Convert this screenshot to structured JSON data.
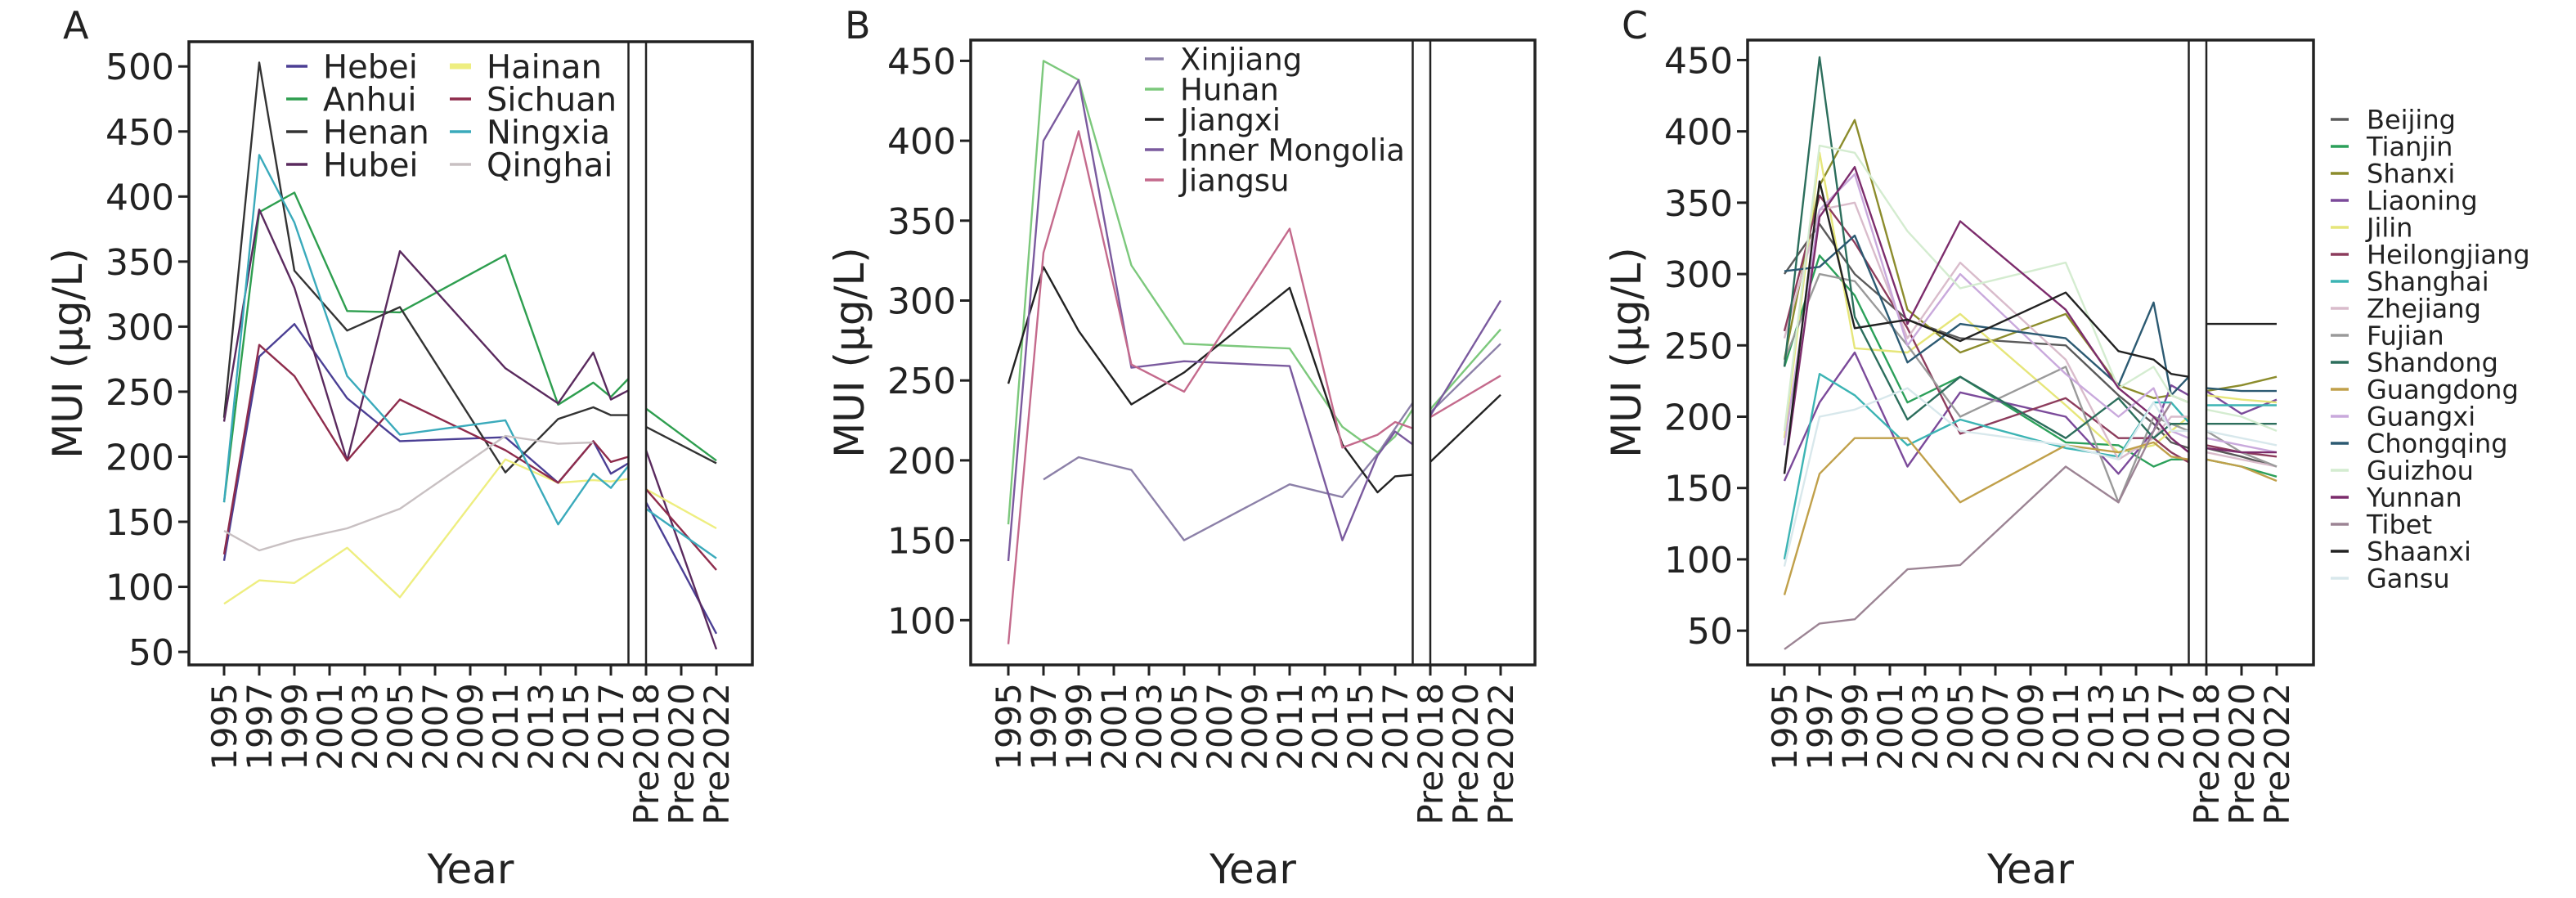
{
  "chart_data": [
    {
      "panel": "A",
      "type": "line",
      "xlabel": "Year",
      "ylabel": "MUI (µg/L)",
      "ylim": [
        40,
        519
      ],
      "y_ticks": [
        "50",
        "100",
        "150",
        "200",
        "250",
        "300",
        "350",
        "400",
        "450",
        "500"
      ],
      "x_tick_labels": [
        "1995",
        "1997",
        "1999",
        "2001",
        "2003",
        "2005",
        "2007",
        "2009",
        "2011",
        "2013",
        "2015",
        "2017",
        "Pre2018",
        "Pre2020",
        "Pre2022"
      ],
      "years": [
        1995,
        1997,
        1999,
        2002,
        2005,
        2011,
        2014,
        2016,
        2017,
        2018
      ],
      "pre_labels": [
        "Pre2018",
        "Pre2020",
        "Pre2022"
      ],
      "legend": "top-center, two columns",
      "series": [
        {
          "name": "Hebei",
          "color": "#4b3f94",
          "values": [
            120,
            277,
            302,
            245,
            212,
            215,
            180,
            212,
            187,
            195
          ],
          "pre": [
            165,
            null,
            64
          ]
        },
        {
          "name": "Anhui",
          "color": "#2e9e4f",
          "values": [
            165,
            388,
            403,
            312,
            311,
            355,
            240,
            257,
            246,
            260
          ],
          "pre": [
            237,
            null,
            197
          ]
        },
        {
          "name": "Henan",
          "color": "#333333",
          "values": [
            230,
            503,
            343,
            297,
            315,
            188,
            229,
            238,
            232,
            232
          ],
          "pre": [
            223,
            null,
            195
          ]
        },
        {
          "name": "Hubei",
          "color": "#5a2a5e",
          "values": [
            227,
            390,
            330,
            197,
            358,
            268,
            241,
            280,
            244,
            251
          ],
          "pre": [
            205,
            null,
            52
          ]
        },
        {
          "name": "Hainan",
          "color": "#eeee80",
          "values": [
            87,
            105,
            103,
            130,
            92,
            198,
            180,
            182,
            181,
            183
          ],
          "pre": [
            175,
            null,
            145
          ]
        },
        {
          "name": "Sichuan",
          "color": "#8e2c4c",
          "values": [
            125,
            286,
            262,
            197,
            244,
            205,
            180,
            212,
            196,
            200
          ],
          "pre": [
            175,
            null,
            113
          ]
        },
        {
          "name": "Ningxia",
          "color": "#3aaabb",
          "values": [
            165,
            432,
            380,
            262,
            217,
            228,
            148,
            187,
            176,
            193
          ],
          "pre": [
            160,
            null,
            122
          ]
        },
        {
          "name": "Qinghai",
          "color": "#c8c0c2",
          "values": [
            143,
            128,
            136,
            145,
            160,
            216,
            210,
            211,
            null,
            null
          ],
          "pre": [
            null,
            null,
            null
          ]
        }
      ]
    },
    {
      "panel": "B",
      "type": "line",
      "xlabel": "Year",
      "ylabel": "MUI (µg/L)",
      "ylim": [
        72,
        463
      ],
      "y_ticks": [
        "100",
        "150",
        "200",
        "250",
        "300",
        "350",
        "400",
        "450"
      ],
      "x_tick_labels": [
        "1995",
        "1997",
        "1999",
        "2001",
        "2003",
        "2005",
        "2007",
        "2009",
        "2011",
        "2013",
        "2015",
        "2017",
        "Pre2018",
        "Pre2020",
        "Pre2022"
      ],
      "years": [
        1995,
        1997,
        1999,
        2002,
        2005,
        2011,
        2014,
        2016,
        2017,
        2018
      ],
      "pre_labels": [
        "Pre2018",
        "Pre2020",
        "Pre2022"
      ],
      "legend": "top-center",
      "series": [
        {
          "name": "Xinjiang",
          "color": "#8c80a8",
          "values": [
            null,
            188,
            202,
            194,
            150,
            185,
            177,
            204,
            220,
            236
          ],
          "pre": [
            230,
            null,
            273
          ]
        },
        {
          "name": "Hunan",
          "color": "#7cc87c",
          "values": [
            160,
            450,
            438,
            322,
            273,
            270,
            221,
            205,
            215,
            232
          ],
          "pre": [
            232,
            null,
            282
          ]
        },
        {
          "name": "Jiangxi",
          "color": "#222222",
          "values": [
            248,
            321,
            281,
            235,
            255,
            308,
            210,
            180,
            190,
            191
          ],
          "pre": [
            199,
            null,
            241
          ]
        },
        {
          "name": "Inner Mongolia",
          "color": "#7a5a9e",
          "values": [
            137,
            400,
            438,
            258,
            262,
            259,
            150,
            203,
            218,
            210
          ],
          "pre": [
            228,
            null,
            300
          ]
        },
        {
          "name": "Jiangsu",
          "color": "#c46a8c",
          "values": [
            85,
            330,
            406,
            260,
            243,
            345,
            208,
            216,
            224,
            220
          ],
          "pre": [
            227,
            null,
            253
          ]
        }
      ]
    },
    {
      "panel": "C",
      "type": "line",
      "xlabel": "Year",
      "ylabel": "MUI (µg/L)",
      "ylim": [
        26,
        464
      ],
      "y_ticks": [
        "50",
        "100",
        "150",
        "200",
        "250",
        "300",
        "350",
        "400",
        "450"
      ],
      "x_tick_labels": [
        "1995",
        "1997",
        "1999",
        "2001",
        "2003",
        "2005",
        "2007",
        "2009",
        "2011",
        "2013",
        "2015",
        "2017",
        "Pre2018",
        "Pre2020",
        "Pre2022"
      ],
      "years": [
        1995,
        1997,
        1999,
        2002,
        2005,
        2011,
        2014,
        2016,
        2017,
        2018
      ],
      "pre_labels": [
        "Pre2018",
        "Pre2020",
        "Pre2022"
      ],
      "legend": "right, outside",
      "series": [
        {
          "name": "Beijing",
          "color": "#5a5a5a",
          "values": [
            300,
            335,
            300,
            268,
            255,
            250,
            215,
            195,
            182,
            178
          ],
          "pre": [
            178,
            172,
            165
          ]
        },
        {
          "name": "Tianjin",
          "color": "#2ca05a",
          "values": [
            235,
            313,
            285,
            210,
            228,
            182,
            180,
            165,
            170,
            170
          ],
          "pre": [
            170,
            165,
            158
          ]
        },
        {
          "name": "Shanxi",
          "color": "#8c8c2c",
          "values": [
            240,
            362,
            408,
            275,
            245,
            272,
            222,
            213,
            215,
            210
          ],
          "pre": [
            218,
            222,
            228
          ]
        },
        {
          "name": "Liaoning",
          "color": "#7b4a9a",
          "values": [
            155,
            210,
            245,
            165,
            217,
            200,
            160,
            190,
            222,
            215
          ],
          "pre": [
            218,
            202,
            212
          ]
        },
        {
          "name": "Jilin",
          "color": "#e6e67a",
          "values": [
            185,
            385,
            248,
            245,
            272,
            208,
            175,
            180,
            190,
            200
          ],
          "pre": [
            215,
            212,
            210
          ]
        },
        {
          "name": "Heilongjiang",
          "color": "#8c3c5c",
          "values": [
            260,
            355,
            322,
            262,
            188,
            213,
            185,
            185,
            175,
            168
          ],
          "pre": [
            180,
            175,
            172
          ]
        },
        {
          "name": "Shanghai",
          "color": "#3cb4b4",
          "values": [
            100,
            230,
            215,
            180,
            198,
            178,
            172,
            210,
            210,
            196
          ],
          "pre": [
            208,
            208,
            208
          ]
        },
        {
          "name": "Zhejiang",
          "color": "#d9bccb",
          "values": [
            255,
            345,
            350,
            255,
            308,
            240,
            170,
            185,
            200,
            200
          ],
          "pre": [
            175,
            170,
            165
          ]
        },
        {
          "name": "Fujian",
          "color": "#9a9a9a",
          "values": [
            240,
            300,
            295,
            250,
            200,
            235,
            140,
            200,
            195,
            190
          ],
          "pre": [
            190,
            175,
            165
          ]
        },
        {
          "name": "Shandong",
          "color": "#2c6e5c",
          "values": [
            235,
            452,
            270,
            198,
            228,
            185,
            213,
            185,
            195,
            195
          ],
          "pre": [
            195,
            195,
            195
          ]
        },
        {
          "name": "Guangdong",
          "color": "#c0a04a",
          "values": [
            75,
            160,
            185,
            185,
            140,
            180,
            175,
            182,
            172,
            170
          ],
          "pre": [
            170,
            165,
            155
          ]
        },
        {
          "name": "Guangxi",
          "color": "#c9a9dc",
          "values": [
            180,
            345,
            370,
            250,
            300,
            230,
            200,
            220,
            190,
            185
          ],
          "pre": [
            185,
            180,
            175
          ]
        },
        {
          "name": "Chongqing",
          "color": "#2c5a72",
          "values": [
            302,
            305,
            327,
            238,
            265,
            255,
            222,
            280,
            215,
            228
          ],
          "pre": [
            220,
            218,
            218
          ]
        },
        {
          "name": "Guizhou",
          "color": "#d4ecd0",
          "values": [
            190,
            390,
            385,
            330,
            290,
            308,
            220,
            235,
            215,
            210
          ],
          "pre": [
            205,
            200,
            190
          ]
        },
        {
          "name": "Yunnan",
          "color": "#7c2c6c",
          "values": [
            160,
            340,
            375,
            265,
            337,
            275,
            220,
            200,
            185,
            175
          ],
          "pre": [
            178,
            175,
            175
          ]
        },
        {
          "name": "Tibet",
          "color": "#9c8494",
          "values": [
            37,
            55,
            58,
            93,
            96,
            165,
            140,
            190,
            210,
            null
          ],
          "pre": [
            null,
            null,
            null
          ]
        },
        {
          "name": "Shaanxi",
          "color": "#222222",
          "values": [
            160,
            365,
            262,
            268,
            253,
            287,
            246,
            240,
            230,
            228
          ],
          "pre": [
            265,
            265,
            265
          ]
        },
        {
          "name": "Gansu",
          "color": "#d8e8ec",
          "values": [
            95,
            200,
            205,
            220,
            190,
            180,
            170,
            210,
            190,
            190
          ],
          "pre": [
            190,
            185,
            180
          ]
        }
      ]
    }
  ]
}
